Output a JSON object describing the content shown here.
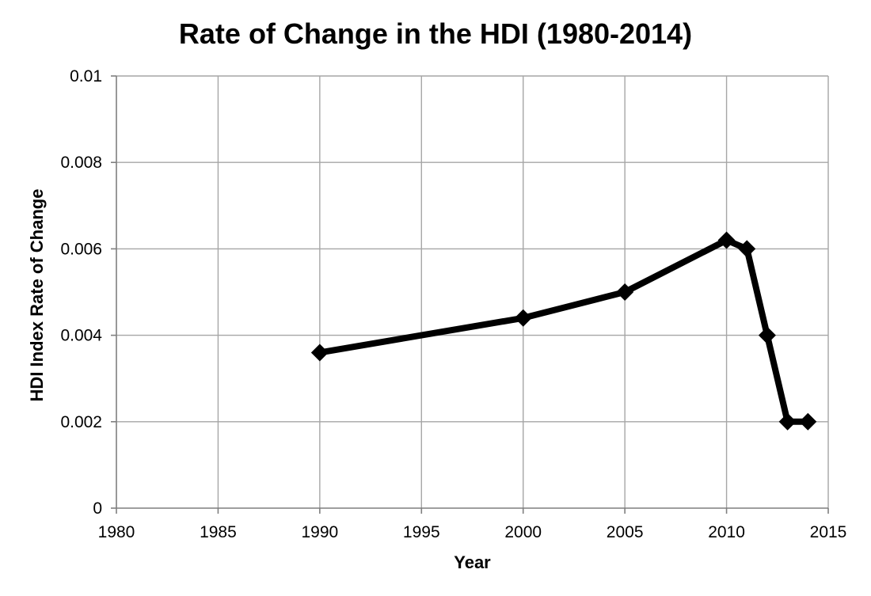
{
  "chart_data": {
    "type": "line",
    "title": "Rate of Change in the HDI (1980-2014)",
    "xlabel": "Year",
    "ylabel": "HDI Index Rate of Change",
    "xlim": [
      1980,
      2015
    ],
    "ylim": [
      0,
      0.01
    ],
    "x_ticks": [
      1980,
      1985,
      1990,
      1995,
      2000,
      2005,
      2010,
      2015
    ],
    "y_ticks": [
      0,
      0.002,
      0.004,
      0.006,
      0.008,
      0.01
    ],
    "x_tick_labels": [
      "1980",
      "1985",
      "1990",
      "1995",
      "2000",
      "2005",
      "2010",
      "2015"
    ],
    "y_tick_labels": [
      "0",
      "0.002",
      "0.004",
      "0.006",
      "0.008",
      "0.01"
    ],
    "grid": true,
    "legend": "none",
    "marker": "diamond",
    "line_color": "#000000",
    "series": [
      {
        "x": [
          1990,
          2000,
          2005,
          2010,
          2011,
          2012,
          2013,
          2014
        ],
        "values": [
          0.0036,
          0.0044,
          0.005,
          0.0062,
          0.006,
          0.004,
          0.002,
          0.002
        ]
      }
    ]
  }
}
